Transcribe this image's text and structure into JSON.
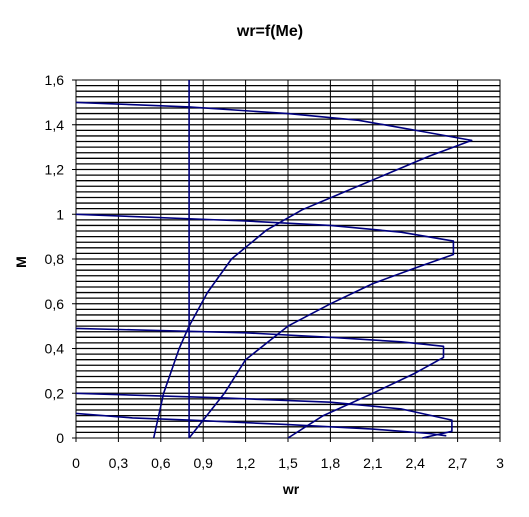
{
  "chart_data": {
    "type": "scatter",
    "title": "wr=f(Me)",
    "xlabel": "wr",
    "ylabel": "M",
    "xlim": [
      0,
      3
    ],
    "ylim": [
      0,
      1.6
    ],
    "x_ticks": [
      "0",
      "0,3",
      "0,6",
      "0,9",
      "1,2",
      "1,5",
      "1,8",
      "2,1",
      "2,4",
      "2,7",
      "3"
    ],
    "y_ticks": [
      "0",
      "0,2",
      "0,4",
      "0,6",
      "0,8",
      "1",
      "1,2",
      "1,4",
      "1,6"
    ],
    "grid": true,
    "legend": "none",
    "line_color": "#000080",
    "series": [
      {
        "values": [
          {
            "x": 0.55,
            "y": 0.0
          },
          {
            "x": 0.62,
            "y": 0.2
          },
          {
            "x": 0.73,
            "y": 0.4
          },
          {
            "x": 0.8,
            "y": 0.5
          },
          {
            "x": 0.93,
            "y": 0.65
          },
          {
            "x": 1.1,
            "y": 0.8
          },
          {
            "x": 1.35,
            "y": 0.93
          },
          {
            "x": 1.6,
            "y": 1.02
          },
          {
            "x": 1.9,
            "y": 1.1
          },
          {
            "x": 2.2,
            "y": 1.18
          },
          {
            "x": 2.5,
            "y": 1.26
          },
          {
            "x": 2.8,
            "y": 1.33
          },
          {
            "x": 2.45,
            "y": 1.37
          },
          {
            "x": 2.0,
            "y": 1.42
          },
          {
            "x": 1.5,
            "y": 1.45
          },
          {
            "x": 0.8,
            "y": 1.48
          },
          {
            "x": 0.0,
            "y": 1.5
          }
        ]
      },
      {
        "values": [
          {
            "x": 0.8,
            "y": 0.0
          },
          {
            "x": 0.9,
            "y": 0.08
          },
          {
            "x": 1.05,
            "y": 0.2
          },
          {
            "x": 1.2,
            "y": 0.35
          },
          {
            "x": 1.5,
            "y": 0.5
          },
          {
            "x": 1.8,
            "y": 0.6
          },
          {
            "x": 2.1,
            "y": 0.69
          },
          {
            "x": 2.4,
            "y": 0.76
          },
          {
            "x": 2.67,
            "y": 0.82
          },
          {
            "x": 2.67,
            "y": 0.88
          },
          {
            "x": 2.3,
            "y": 0.92
          },
          {
            "x": 1.8,
            "y": 0.95
          },
          {
            "x": 1.2,
            "y": 0.97
          },
          {
            "x": 0.0,
            "y": 1.0
          }
        ]
      },
      {
        "values": [
          {
            "x": 1.5,
            "y": 0.0
          },
          {
            "x": 1.75,
            "y": 0.1
          },
          {
            "x": 2.1,
            "y": 0.2
          },
          {
            "x": 2.4,
            "y": 0.29
          },
          {
            "x": 2.6,
            "y": 0.36
          },
          {
            "x": 2.6,
            "y": 0.41
          },
          {
            "x": 2.3,
            "y": 0.43
          },
          {
            "x": 1.8,
            "y": 0.45
          },
          {
            "x": 1.2,
            "y": 0.47
          },
          {
            "x": 0.0,
            "y": 0.49
          }
        ]
      },
      {
        "values": [
          {
            "x": 2.45,
            "y": 0.0
          },
          {
            "x": 2.66,
            "y": 0.03
          },
          {
            "x": 2.66,
            "y": 0.08
          },
          {
            "x": 2.3,
            "y": 0.13
          },
          {
            "x": 1.8,
            "y": 0.16
          },
          {
            "x": 1.0,
            "y": 0.18
          },
          {
            "x": 0.0,
            "y": 0.2
          }
        ]
      },
      {
        "values": [
          {
            "x": 0.0,
            "y": 0.11
          },
          {
            "x": 0.4,
            "y": 0.09
          },
          {
            "x": 0.8,
            "y": 0.08
          },
          {
            "x": 1.5,
            "y": 0.06
          },
          {
            "x": 2.1,
            "y": 0.04
          },
          {
            "x": 2.5,
            "y": 0.02
          },
          {
            "x": 2.62,
            "y": 0.01
          }
        ]
      },
      {
        "values": [
          {
            "x": 0.8,
            "y": 0.0
          },
          {
            "x": 0.8,
            "y": 1.6
          }
        ]
      }
    ]
  }
}
